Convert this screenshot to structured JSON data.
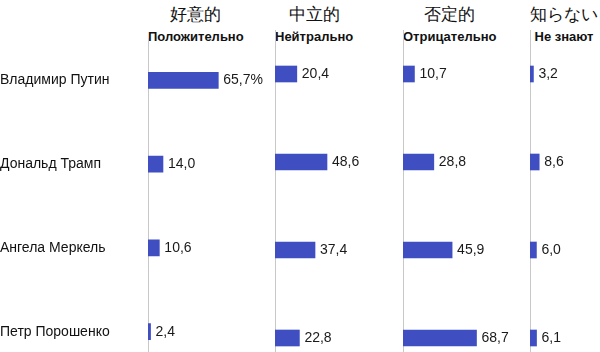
{
  "chart_data": [
    {
      "type": "bar",
      "orientation": "horizontal",
      "title": "Положительно",
      "subtitle": "好意的",
      "categories": [
        "Владимир Путин",
        "Дональд Трамп",
        "Ангела Меркель",
        "Петр Порошенко"
      ],
      "values": [
        65.7,
        14.0,
        10.6,
        2.4
      ],
      "value_labels": [
        "65,7%",
        "14,0",
        "10,6",
        "2,4"
      ],
      "color": "#3f4fc2",
      "xlim": [
        0,
        100
      ],
      "data_labels": true,
      "tick_labels": "y"
    },
    {
      "type": "bar",
      "orientation": "horizontal",
      "title": "Нейтрально",
      "subtitle": "中立的",
      "categories": [
        "Владимир Путин",
        "Дональд Трамп",
        "Ангела Меркель",
        "Петр Порошенко"
      ],
      "values": [
        20.4,
        48.6,
        37.4,
        22.8
      ],
      "value_labels": [
        "20,4",
        "48,6",
        "37,4",
        "22,8"
      ],
      "color": "#3f4fc2",
      "xlim": [
        0,
        100
      ],
      "data_labels": true,
      "tick_labels": false
    },
    {
      "type": "bar",
      "orientation": "horizontal",
      "title": "Отрицательно",
      "subtitle": "否定的",
      "categories": [
        "Владимир Путин",
        "Дональд Трамп",
        "Ангела Меркель",
        "Петр Порошенко"
      ],
      "values": [
        10.7,
        28.8,
        45.9,
        68.7
      ],
      "value_labels": [
        "10,7",
        "28,8",
        "45,9",
        "68,7"
      ],
      "color": "#3f4fc2",
      "xlim": [
        0,
        100
      ],
      "data_labels": true,
      "tick_labels": false
    },
    {
      "type": "bar",
      "orientation": "horizontal",
      "title": "Не знают",
      "subtitle": "知らない",
      "categories": [
        "Владимир Путин",
        "Дональд Трамп",
        "Ангела Меркель",
        "Петр Порошенко"
      ],
      "values": [
        3.2,
        8.6,
        6.0,
        6.1
      ],
      "value_labels": [
        "3,2",
        "8,6",
        "6,0",
        "6,1"
      ],
      "color": "#3f4fc2",
      "xlim": [
        0,
        100
      ],
      "data_labels": true,
      "tick_labels": false
    }
  ]
}
